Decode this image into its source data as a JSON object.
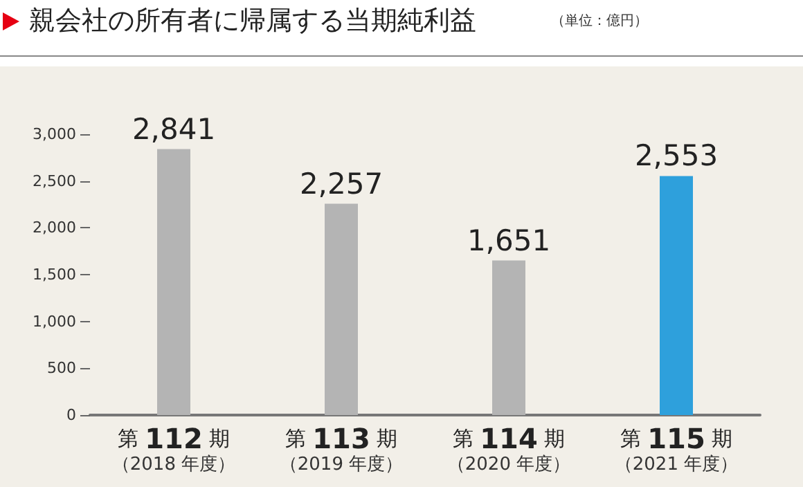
{
  "chart_data": {
    "type": "bar",
    "title": "親会社の所有者に帰属する当期純利益",
    "subtitle": "（単位：億円）",
    "categories": [
      "第 112 期（2018 年度）",
      "第 113 期（2019 年度）",
      "第 114 期（2020 年度）",
      "第 115 期（2021 年度）"
    ],
    "values": [
      2841,
      2257,
      1651,
      2553
    ],
    "colors": [
      "#b4b4b4",
      "#b4b4b4",
      "#b4b4b4",
      "#2ea0dc"
    ],
    "value_labels": [
      "2,841",
      "2,257",
      "1,651",
      "2,553"
    ],
    "ylim": [
      0,
      3000
    ],
    "yticks": [
      {
        "value": 0,
        "label": "0"
      },
      {
        "value": 500,
        "label": "500"
      },
      {
        "value": 1000,
        "label": "1,000"
      },
      {
        "value": 1500,
        "label": "1,500"
      },
      {
        "value": 2000,
        "label": "2,000"
      },
      {
        "value": 2500,
        "label": "2,500"
      },
      {
        "value": 3000,
        "label": "3,000"
      }
    ],
    "grid": false
  }
}
